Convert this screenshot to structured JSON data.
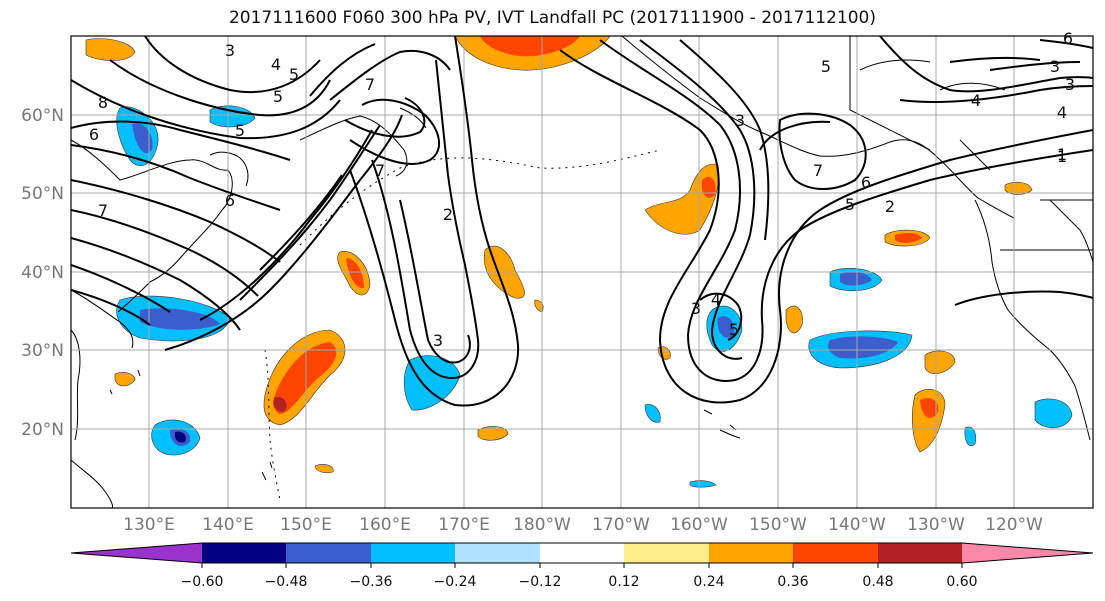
{
  "title": "2017111600 F060 300 hPa PV, IVT Landfall PC (2017111900 - 2017112100)",
  "lat_labels": [
    "60°N",
    "50°N",
    "40°N",
    "30°N",
    "20°N"
  ],
  "lon_labels": [
    "130°E",
    "140°E",
    "150°E",
    "160°E",
    "170°E",
    "180°W",
    "170°W",
    "160°W",
    "150°W",
    "140°W",
    "130°W",
    "120°W"
  ],
  "colorbar": {
    "ticks": [
      "−0.60",
      "−0.48",
      "−0.36",
      "−0.24",
      "−0.12",
      "0.12",
      "0.24",
      "0.36",
      "0.48",
      "0.60"
    ],
    "colors": [
      "#9933cc",
      "#000080",
      "#3a5fcd",
      "#00bfff",
      "#b0e2ff",
      "#ffffff",
      "#ffec8b",
      "#ffa500",
      "#ff4500",
      "#b22222",
      "#ff88aa"
    ]
  },
  "contour_labels": [
    "3",
    "4",
    "5",
    "8",
    "6",
    "7",
    "5",
    "7",
    "6",
    "3",
    "2",
    "1",
    "5",
    "7",
    "6",
    "5",
    "2",
    "3",
    "4",
    "5",
    "4",
    "1",
    "3",
    "6",
    "3",
    "4",
    "5",
    "7",
    "3"
  ]
}
